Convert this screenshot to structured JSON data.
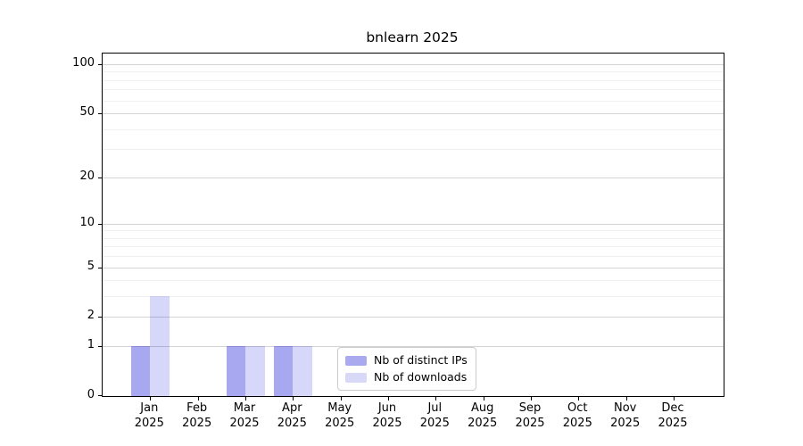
{
  "title": "bnlearn 2025",
  "chart_data": {
    "type": "bar",
    "title": "bnlearn 2025",
    "categories": [
      "Jan 2025",
      "Feb 2025",
      "Mar 2025",
      "Apr 2025",
      "May 2025",
      "Jun 2025",
      "Jul 2025",
      "Aug 2025",
      "Sep 2025",
      "Oct 2025",
      "Nov 2025",
      "Dec 2025"
    ],
    "category_months": [
      "Jan",
      "Feb",
      "Mar",
      "Apr",
      "May",
      "Jun",
      "Jul",
      "Aug",
      "Sep",
      "Oct",
      "Nov",
      "Dec"
    ],
    "year_label": "2025",
    "series": [
      {
        "name": "Nb of distinct IPs",
        "color": "#a9a9f0",
        "rgba": "rgba(0,0,215,0.34)",
        "values": [
          1,
          0,
          1,
          1,
          0,
          0,
          0,
          0,
          0,
          0,
          0,
          0
        ]
      },
      {
        "name": "Nb of downloads",
        "color": "#d8d8f7",
        "rgba": "rgba(0,0,215,0.155)",
        "values": [
          3,
          0,
          1,
          1,
          0,
          0,
          0,
          0,
          0,
          0,
          0,
          0
        ]
      }
    ],
    "xlabel": "",
    "ylabel": "",
    "y_axis": {
      "scale": "log1p",
      "ticks": [
        0,
        1,
        2,
        5,
        10,
        20,
        50,
        100
      ],
      "minor_gridlines": [
        3,
        4,
        6,
        7,
        8,
        9,
        30,
        40,
        60,
        70,
        80,
        90
      ],
      "max": 116
    },
    "grid": "horizontal major and minor, no vertical",
    "legend_position": "inside bottom center",
    "colors": {
      "major_grid": "#d4d4d4",
      "minor_grid": "#f0f0f0",
      "axis": "#000000",
      "background": "#ffffff"
    }
  }
}
